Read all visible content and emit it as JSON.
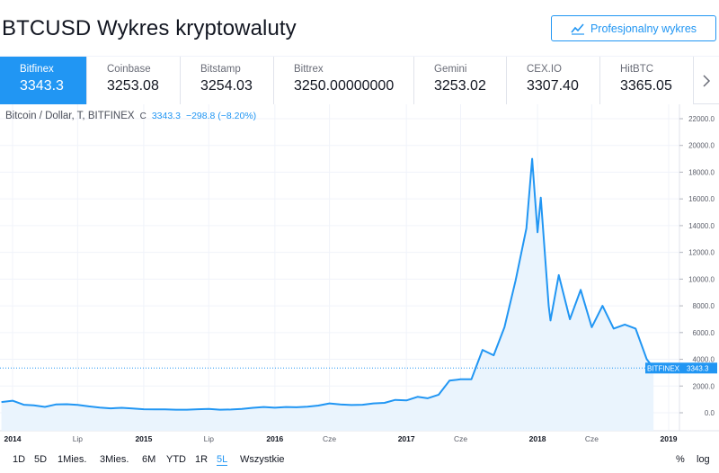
{
  "page_title": "BTCUSD Wykres kryptowaluty",
  "pro_button_label": "Profesjonalny wykres",
  "tabs": [
    {
      "exchange": "Bitfinex",
      "price": "3343.3",
      "active": true
    },
    {
      "exchange": "Coinbase",
      "price": "3253.08",
      "active": false
    },
    {
      "exchange": "Bitstamp",
      "price": "3254.03",
      "active": false
    },
    {
      "exchange": "Bittrex",
      "price": "3250.00000000",
      "active": false
    },
    {
      "exchange": "Gemini",
      "price": "3253.02",
      "active": false
    },
    {
      "exchange": "CEX.IO",
      "price": "3307.40",
      "active": false
    },
    {
      "exchange": "HitBTC",
      "price": "3365.05",
      "active": false
    }
  ],
  "legend": {
    "symbol": "Bitcoin / Dollar, T, BITFINEX",
    "c_label": "C",
    "close": "3343.3",
    "change": "−298.8 (−8.20%)"
  },
  "last_price_label": {
    "exchange": "BITFINEX",
    "value": "3343.3"
  },
  "ranges": [
    "1D",
    "5D",
    "1Mies.",
    "3Mies.",
    "6M",
    "YTD",
    "1R",
    "5L",
    "Wszystkie"
  ],
  "active_range": "5L",
  "toolbar_right": {
    "percent": "%",
    "log": "log"
  },
  "colors": {
    "accent": "#2196f3",
    "line": "#2196f3",
    "area": "#eaf4fd"
  },
  "chart_data": {
    "type": "area",
    "series": [
      {
        "name": "BTCUSD",
        "x": [
          "2013-12-01",
          "2014-01-01",
          "2014-02-01",
          "2014-03-01",
          "2014-04-01",
          "2014-05-01",
          "2014-06-01",
          "2014-07-01",
          "2014-08-01",
          "2014-09-01",
          "2014-10-01",
          "2014-11-01",
          "2014-12-01",
          "2015-01-01",
          "2015-02-01",
          "2015-03-01",
          "2015-04-01",
          "2015-05-01",
          "2015-06-01",
          "2015-07-01",
          "2015-08-01",
          "2015-09-01",
          "2015-10-01",
          "2015-11-01",
          "2015-12-01",
          "2016-01-01",
          "2016-02-01",
          "2016-03-01",
          "2016-04-01",
          "2016-05-01",
          "2016-06-01",
          "2016-07-01",
          "2016-08-01",
          "2016-09-01",
          "2016-10-01",
          "2016-11-01",
          "2016-12-01",
          "2017-01-01",
          "2017-02-01",
          "2017-03-01",
          "2017-04-01",
          "2017-05-01",
          "2017-06-01",
          "2017-07-01",
          "2017-08-01",
          "2017-09-01",
          "2017-10-01",
          "2017-11-01",
          "2017-12-01",
          "2017-12-17",
          "2018-01-01",
          "2018-01-10",
          "2018-02-01",
          "2018-02-06",
          "2018-03-01",
          "2018-04-01",
          "2018-05-01",
          "2018-06-01",
          "2018-07-01",
          "2018-08-01",
          "2018-09-01",
          "2018-10-01",
          "2018-11-01",
          "2018-11-20"
        ],
        "values": [
          800,
          900,
          600,
          560,
          440,
          620,
          640,
          590,
          480,
          390,
          330,
          370,
          320,
          260,
          250,
          250,
          230,
          230,
          260,
          280,
          230,
          240,
          290,
          370,
          430,
          380,
          430,
          410,
          450,
          540,
          700,
          620,
          580,
          600,
          700,
          740,
          960,
          920,
          1190,
          1080,
          1350,
          2400,
          2500,
          2500,
          4700,
          4300,
          6400,
          9900,
          13800,
          19000,
          13500,
          16100,
          8000,
          6900,
          10300,
          7000,
          9200,
          6400,
          8000,
          6300,
          6600,
          6300,
          4000,
          3343.3
        ]
      }
    ],
    "x_ticks": [
      "2014",
      "Lip",
      "2015",
      "Lip",
      "2016",
      "Cze",
      "2017",
      "Cze",
      "2018",
      "Cze",
      "2019"
    ],
    "y_ticks": [
      "22000.0",
      "20000.0",
      "18000.0",
      "16000.0",
      "14000.0",
      "12000.0",
      "10000.0",
      "8000.0",
      "6000.0",
      "4000.0",
      "2000.0",
      "0.0"
    ],
    "ylim": [
      -500,
      22500
    ],
    "last_value": 3343.3,
    "grid": true
  }
}
